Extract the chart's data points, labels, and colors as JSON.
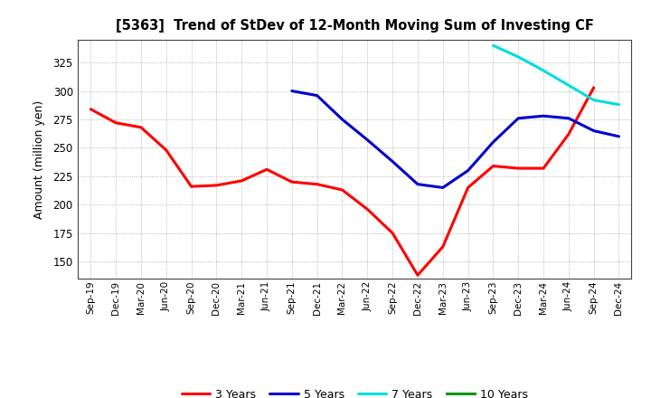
{
  "title": "[5363]  Trend of StDev of 12-Month Moving Sum of Investing CF",
  "ylabel": "Amount (million yen)",
  "background_color": "#ffffff",
  "grid_color": "#999999",
  "ylim": [
    135,
    345
  ],
  "yticks": [
    150,
    175,
    200,
    225,
    250,
    275,
    300,
    325
  ],
  "line_colors": {
    "3yr": "#ff0000",
    "5yr": "#0000cc",
    "7yr": "#00dddd",
    "10yr": "#009900"
  },
  "legend_labels": [
    "3 Years",
    "5 Years",
    "7 Years",
    "10 Years"
  ],
  "x_labels": [
    "Sep-19",
    "Dec-19",
    "Mar-20",
    "Jun-20",
    "Sep-20",
    "Dec-20",
    "Mar-21",
    "Jun-21",
    "Sep-21",
    "Dec-21",
    "Mar-22",
    "Jun-22",
    "Sep-22",
    "Dec-22",
    "Mar-23",
    "Jun-23",
    "Sep-23",
    "Dec-23",
    "Mar-24",
    "Jun-24",
    "Sep-24",
    "Dec-24"
  ],
  "data_3yr": [
    284,
    272,
    268,
    248,
    216,
    217,
    221,
    231,
    220,
    218,
    213,
    196,
    175,
    138,
    163,
    215,
    234,
    232,
    232,
    262,
    303,
    null
  ],
  "data_5yr": [
    null,
    null,
    null,
    null,
    null,
    null,
    null,
    null,
    300,
    296,
    275,
    257,
    238,
    218,
    215,
    230,
    255,
    276,
    278,
    276,
    265,
    260
  ],
  "data_7yr": [
    null,
    null,
    null,
    null,
    null,
    null,
    null,
    null,
    null,
    null,
    null,
    null,
    null,
    null,
    null,
    null,
    340,
    330,
    318,
    305,
    292,
    288
  ],
  "data_10yr": []
}
